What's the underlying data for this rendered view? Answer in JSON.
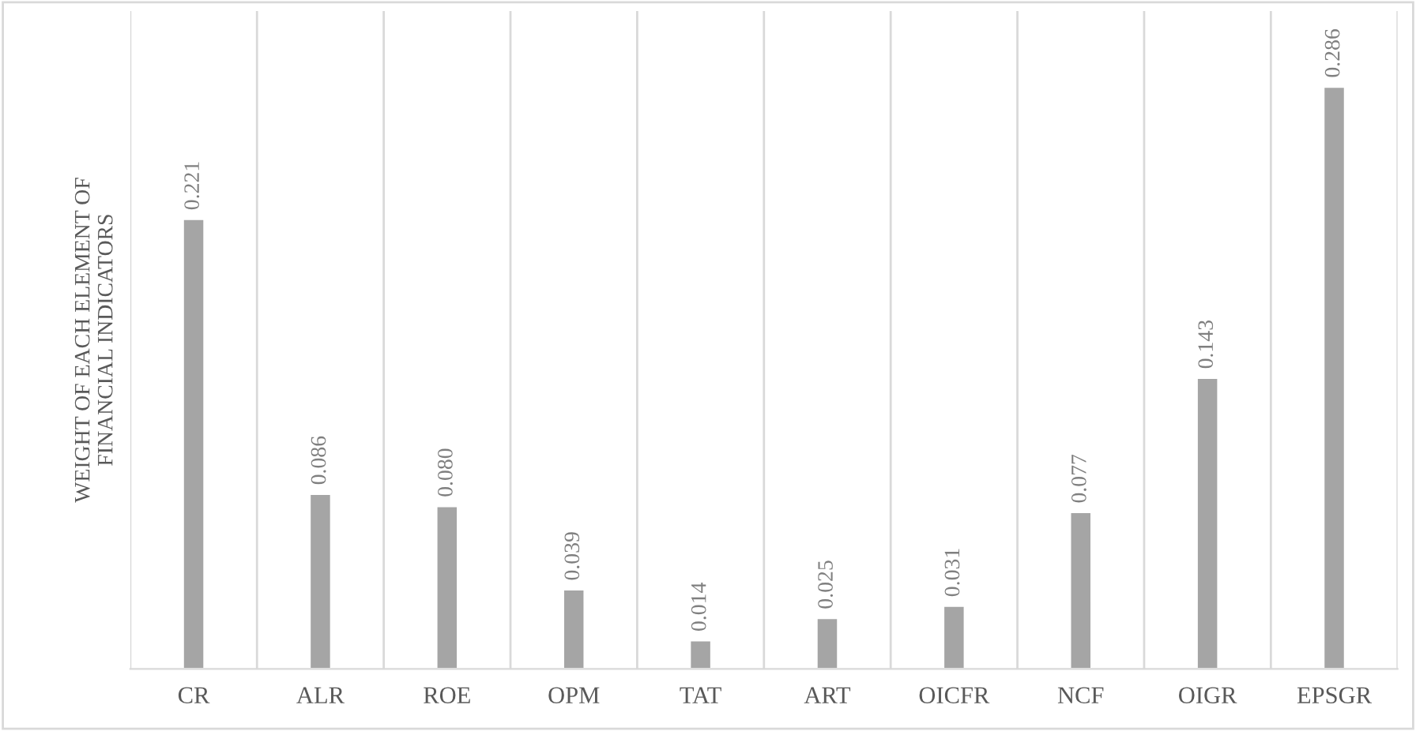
{
  "chart_data": {
    "type": "bar",
    "ylabel": "WEIGHT OF EACH ELEMENT OF\nFINANCIAL INDICATORS",
    "categories": [
      "CR",
      "ALR",
      "ROE",
      "OPM",
      "TAT",
      "ART",
      "OICFR",
      "NCF",
      "OIGR",
      "EPSGR"
    ],
    "values": [
      0.221,
      0.086,
      0.08,
      0.039,
      0.014,
      0.025,
      0.031,
      0.077,
      0.143,
      0.286
    ],
    "value_labels": [
      "0.221",
      "0.086",
      "0.080",
      "0.039",
      "0.014",
      "0.025",
      "0.031",
      "0.077",
      "0.143",
      "0.286"
    ],
    "color": "#a5a5a5",
    "grid": "x"
  }
}
